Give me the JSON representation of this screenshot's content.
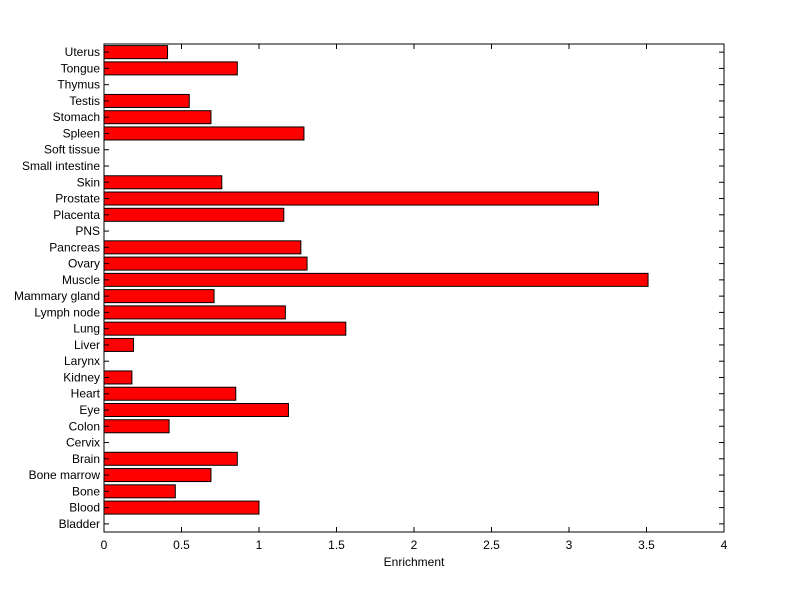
{
  "chart_data": {
    "type": "bar",
    "orientation": "horizontal",
    "categories": [
      "Uterus",
      "Tongue",
      "Thymus",
      "Testis",
      "Stomach",
      "Spleen",
      "Soft tissue",
      "Small intestine",
      "Skin",
      "Prostate",
      "Placenta",
      "PNS",
      "Pancreas",
      "Ovary",
      "Muscle",
      "Mammary gland",
      "Lymph node",
      "Lung",
      "Liver",
      "Larynx",
      "Kidney",
      "Heart",
      "Eye",
      "Colon",
      "Cervix",
      "Brain",
      "Bone marrow",
      "Bone",
      "Blood",
      "Bladder"
    ],
    "values": [
      0.41,
      0.86,
      0,
      0.55,
      0.69,
      1.29,
      0,
      0,
      0.76,
      3.19,
      1.16,
      0,
      1.27,
      1.31,
      3.51,
      0.71,
      1.17,
      1.56,
      0.19,
      0,
      0.18,
      0.85,
      1.19,
      0.42,
      0,
      0.86,
      0.69,
      0.46,
      1.0,
      0
    ],
    "title": "",
    "xlabel": "Enrichment",
    "ylabel": "",
    "xlim": [
      0,
      4
    ],
    "xticks": [
      "0",
      "0.5",
      "1",
      "1.5",
      "2",
      "2.5",
      "3",
      "3.5",
      "4"
    ],
    "grid": false,
    "bar_color": "#ff0000",
    "bar_edge_color": "#000000"
  }
}
